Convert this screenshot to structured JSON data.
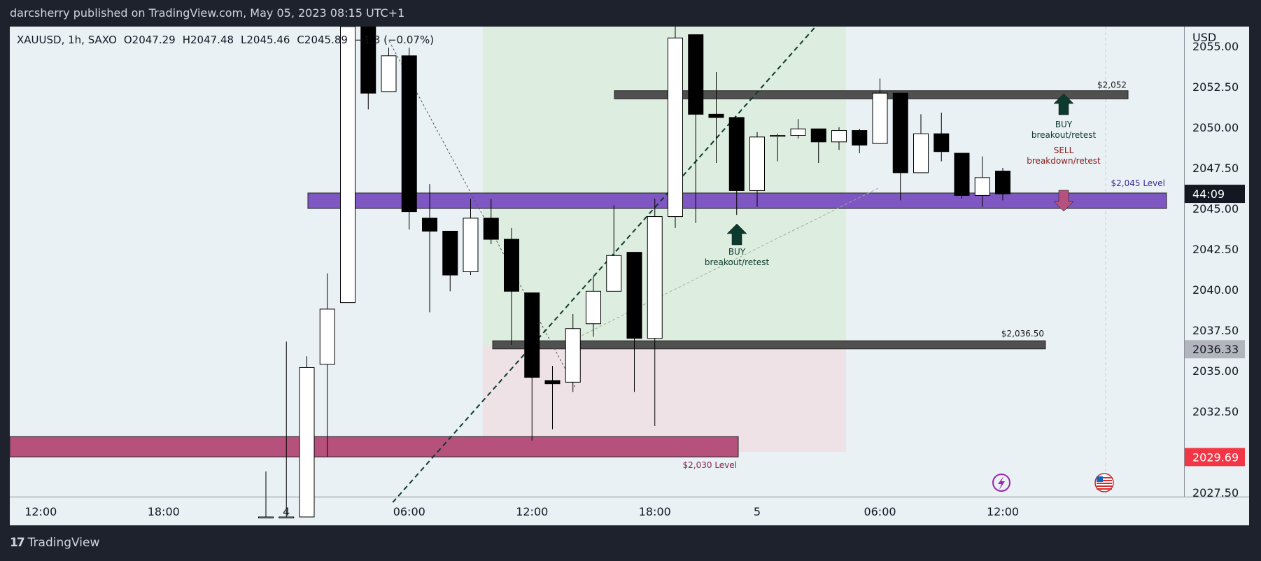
{
  "header": {
    "publisher_line": "darcsherry published on TradingView.com, May 05, 2023 08:15 UTC+1"
  },
  "footer": {
    "brand": "TradingView"
  },
  "legend": {
    "symbol": "XAUUSD, 1h, SAXO",
    "open": "O2047.29",
    "high": "H2047.48",
    "low": "L2045.46",
    "close": "C2045.89",
    "change": "−1.3",
    "change_pct": "−0.07%)"
  },
  "colors": {
    "page": "#1e222d",
    "chart_bg": "#e9f1f4",
    "purple_band": "#7e57c2",
    "maroon_band": "#b5517c",
    "dark_band": "#505050",
    "profit_zone": "#d9ecd9",
    "loss_zone": "#f0e0e6",
    "buy_arrow": "#0c3b2e",
    "sell_arrow": "#b5517c",
    "sell_text": "#8b1a1a",
    "level_label_purple": "#3d2a9e",
    "level_label_maroon": "#8b1f4f",
    "price_tag_dark": "#131722",
    "price_tag_grey": "#b2b5be",
    "price_tag_red": "#f23645"
  },
  "chart_data": {
    "type": "candlestick",
    "currency": "USD",
    "y_ticks": [
      "2055.00",
      "2052.50",
      "2050.00",
      "2047.50",
      "2045.00",
      "2042.50",
      "2040.00",
      "2037.50",
      "2035.00",
      "2032.50",
      "2030.00",
      "2027.50"
    ],
    "y_tick_values": [
      2055.0,
      2052.5,
      2050.0,
      2047.5,
      2045.0,
      2042.5,
      2040.0,
      2037.5,
      2035.0,
      2032.5,
      2030.0,
      2027.5
    ],
    "ylim": [
      2027.25,
      2056.2
    ],
    "x_ticks": [
      {
        "label": "06:00",
        "bar": -17
      },
      {
        "label": "12:00",
        "bar": -11
      },
      {
        "label": "18:00",
        "bar": -5
      },
      {
        "label": "4",
        "bar": 1
      },
      {
        "label": "06:00",
        "bar": 7
      },
      {
        "label": "12:00",
        "bar": 13
      },
      {
        "label": "18:00",
        "bar": 19
      },
      {
        "label": "5",
        "bar": 24
      },
      {
        "label": "06:00",
        "bar": 30
      },
      {
        "label": "12:00",
        "bar": 36
      }
    ],
    "candles": [
      {
        "o": 2026.0,
        "h": 2028.8,
        "l": 2026.0,
        "c": 2026.0
      },
      {
        "o": 2026.0,
        "h": 2036.8,
        "l": 2026.0,
        "c": 2026.0
      },
      {
        "o": 2026.0,
        "h": 2035.9,
        "l": 2026.0,
        "c": 2035.2
      },
      {
        "o": 2035.4,
        "h": 2041.0,
        "l": 2029.7,
        "c": 2038.8
      },
      {
        "o": 2039.2,
        "h": 2056.2,
        "l": 2039.2,
        "c": 2056.2
      },
      {
        "o": 2056.2,
        "h": 2056.2,
        "l": 2051.1,
        "c": 2052.1
      },
      {
        "o": 2052.2,
        "h": 2054.9,
        "l": 2052.2,
        "c": 2054.4
      },
      {
        "o": 2054.4,
        "h": 2054.9,
        "l": 2043.7,
        "c": 2044.8
      },
      {
        "o": 2044.4,
        "h": 2046.5,
        "l": 2038.6,
        "c": 2043.6
      },
      {
        "o": 2043.6,
        "h": 2043.6,
        "l": 2039.9,
        "c": 2040.9
      },
      {
        "o": 2041.1,
        "h": 2045.6,
        "l": 2040.9,
        "c": 2044.4
      },
      {
        "o": 2044.4,
        "h": 2045.6,
        "l": 2042.8,
        "c": 2043.1
      },
      {
        "o": 2043.1,
        "h": 2043.8,
        "l": 2036.6,
        "c": 2039.9
      },
      {
        "o": 2039.8,
        "h": 2039.8,
        "l": 2030.7,
        "c": 2034.6
      },
      {
        "o": 2034.4,
        "h": 2035.3,
        "l": 2031.4,
        "c": 2034.2
      },
      {
        "o": 2034.3,
        "h": 2038.5,
        "l": 2033.7,
        "c": 2037.6
      },
      {
        "o": 2037.9,
        "h": 2040.8,
        "l": 2037.1,
        "c": 2039.9
      },
      {
        "o": 2039.9,
        "h": 2045.2,
        "l": 2039.9,
        "c": 2042.1
      },
      {
        "o": 2042.3,
        "h": 2042.3,
        "l": 2033.7,
        "c": 2037.0
      },
      {
        "o": 2037.0,
        "h": 2045.6,
        "l": 2031.6,
        "c": 2044.5
      },
      {
        "o": 2044.5,
        "h": 2056.2,
        "l": 2043.8,
        "c": 2055.5
      },
      {
        "o": 2055.7,
        "h": 2055.7,
        "l": 2044.1,
        "c": 2050.8
      },
      {
        "o": 2050.8,
        "h": 2053.4,
        "l": 2047.8,
        "c": 2050.6
      },
      {
        "o": 2050.6,
        "h": 2050.6,
        "l": 2044.6,
        "c": 2046.1
      },
      {
        "o": 2046.1,
        "h": 2049.7,
        "l": 2045.1,
        "c": 2049.4
      },
      {
        "o": 2049.5,
        "h": 2049.6,
        "l": 2047.9,
        "c": 2049.5
      },
      {
        "o": 2049.5,
        "h": 2050.5,
        "l": 2049.3,
        "c": 2049.9
      },
      {
        "o": 2049.9,
        "h": 2049.9,
        "l": 2047.8,
        "c": 2049.1
      },
      {
        "o": 2049.1,
        "h": 2050.0,
        "l": 2048.6,
        "c": 2049.8
      },
      {
        "o": 2049.8,
        "h": 2049.9,
        "l": 2048.4,
        "c": 2048.9
      },
      {
        "o": 2049.0,
        "h": 2053.0,
        "l": 2049.0,
        "c": 2052.1
      },
      {
        "o": 2052.1,
        "h": 2052.1,
        "l": 2045.5,
        "c": 2047.2
      },
      {
        "o": 2047.2,
        "h": 2050.8,
        "l": 2047.2,
        "c": 2049.6
      },
      {
        "o": 2049.6,
        "h": 2050.9,
        "l": 2047.9,
        "c": 2048.5
      },
      {
        "o": 2048.4,
        "h": 2048.4,
        "l": 2045.6,
        "c": 2045.8
      },
      {
        "o": 2045.8,
        "h": 2048.2,
        "l": 2045.1,
        "c": 2046.9
      },
      {
        "o": 2047.3,
        "h": 2047.5,
        "l": 2045.5,
        "c": 2045.9
      }
    ],
    "levels": [
      {
        "label": "$2,052",
        "price": 2052.0
      },
      {
        "label": "$2,045 Level",
        "price": 2045.4
      },
      {
        "label": "$2,036.50",
        "price": 2036.6
      },
      {
        "label": "$2,030 Level",
        "price": 2030.0
      }
    ],
    "annotations": [
      {
        "text": [
          "BUY",
          "breakout/retest"
        ],
        "kind": "buy"
      },
      {
        "text": [
          "BUY",
          "breakout/retest"
        ],
        "kind": "buy"
      },
      {
        "text": [
          "SELL",
          "breakdown/retest"
        ],
        "kind": "sell"
      }
    ],
    "price_tags": [
      {
        "text": "44:09",
        "price": 2045.9,
        "kind": "dark"
      },
      {
        "text": "2036.33",
        "price": 2036.33,
        "kind": "grey"
      },
      {
        "text": "2029.69",
        "price": 2029.69,
        "kind": "red"
      }
    ]
  }
}
